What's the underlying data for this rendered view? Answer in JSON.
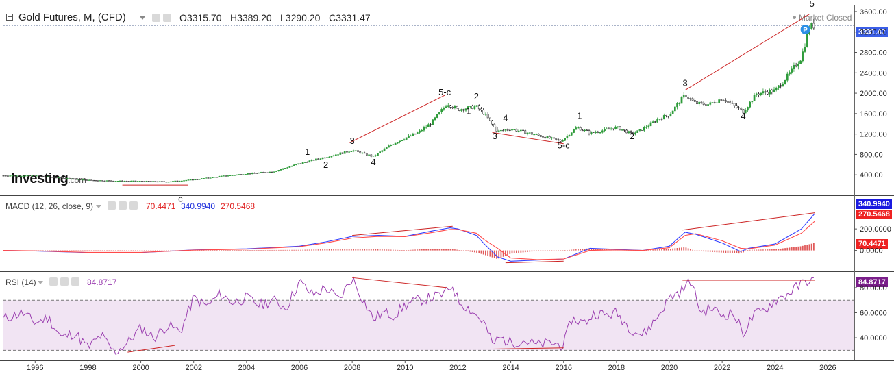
{
  "header": {
    "title": "Gold Futures, M, (CFD)",
    "ohlc": {
      "open": "O3315.70",
      "high": "H3389.20",
      "low": "L3290.20",
      "close": "C3331.47"
    },
    "market_status": "Market Closed",
    "last_price": "3331.47",
    "logo_text": "Investing",
    "logo_suffix": ".com"
  },
  "macd": {
    "label": "MACD (12, 26, close, 9)",
    "hist_value": "70.4471",
    "macd_value": "340.9940",
    "signal_value": "270.5468"
  },
  "rsi": {
    "label": "RSI (14)",
    "value": "84.8717"
  },
  "colors": {
    "up": "#2e9b3a",
    "down": "#111111",
    "trend": "#cc2222",
    "macd_line": "#3340ff",
    "signal_line": "#ff4a4a",
    "histogram": "#e05a5a",
    "rsi_line": "#9b3fb0",
    "rsi_band": "#f1e4f3",
    "price_box": "#3a5ee8"
  },
  "chart_data": [
    {
      "type": "line",
      "name": "price",
      "x_ticks": [
        "1996",
        "1998",
        "2000",
        "2002",
        "2004",
        "2006",
        "2008",
        "2010",
        "2012",
        "2014",
        "2016",
        "2018",
        "2020",
        "2022",
        "2024",
        "2026"
      ],
      "y_ticks": [
        "400.00",
        "800.00",
        "1200.00",
        "1600.00",
        "2000.00",
        "2400.00",
        "2800.00",
        "3200.00",
        "3600.00"
      ],
      "ylim": [
        0,
        3720
      ],
      "xlim": [
        1994.8,
        2027
      ],
      "points": [
        [
          1994.8,
          385
        ],
        [
          1996,
          380
        ],
        [
          1997,
          340
        ],
        [
          1998,
          295
        ],
        [
          1999,
          280
        ],
        [
          2000,
          275
        ],
        [
          2001,
          265
        ],
        [
          2002,
          305
        ],
        [
          2003,
          370
        ],
        [
          2004,
          420
        ],
        [
          2005,
          460
        ],
        [
          2006,
          620
        ],
        [
          2007,
          750
        ],
        [
          2008,
          880
        ],
        [
          2008.8,
          760
        ],
        [
          2009.5,
          1000
        ],
        [
          2010,
          1120
        ],
        [
          2010.5,
          1230
        ],
        [
          2011,
          1420
        ],
        [
          2011.6,
          1800
        ],
        [
          2012,
          1680
        ],
        [
          2012.7,
          1740
        ],
        [
          2013,
          1600
        ],
        [
          2013.5,
          1250
        ],
        [
          2014,
          1300
        ],
        [
          2014.5,
          1240
        ],
        [
          2015,
          1180
        ],
        [
          2015.9,
          1060
        ],
        [
          2016.5,
          1330
        ],
        [
          2017,
          1220
        ],
        [
          2017.5,
          1270
        ],
        [
          2018,
          1330
        ],
        [
          2018.6,
          1200
        ],
        [
          2019,
          1300
        ],
        [
          2019.6,
          1500
        ],
        [
          2020,
          1580
        ],
        [
          2020.6,
          1970
        ],
        [
          2021,
          1800
        ],
        [
          2021.5,
          1780
        ],
        [
          2022,
          1900
        ],
        [
          2022.8,
          1640
        ],
        [
          2023.3,
          1990
        ],
        [
          2024,
          2050
        ],
        [
          2024.5,
          2350
        ],
        [
          2025,
          2700
        ],
        [
          2025.3,
          3300
        ],
        [
          2025.5,
          3331
        ]
      ],
      "labels": [
        {
          "text": "1",
          "x": 2006.3,
          "y": 790
        },
        {
          "text": "2",
          "x": 2007.0,
          "y": 540
        },
        {
          "text": "3",
          "x": 2008.0,
          "y": 1010
        },
        {
          "text": "4",
          "x": 2008.8,
          "y": 590
        },
        {
          "text": "5-c",
          "x": 2011.5,
          "y": 1960
        },
        {
          "text": "2",
          "x": 2012.7,
          "y": 1880
        },
        {
          "text": "1",
          "x": 2012.4,
          "y": 1590
        },
        {
          "text": "4",
          "x": 2013.8,
          "y": 1460
        },
        {
          "text": "3",
          "x": 2013.4,
          "y": 1100
        },
        {
          "text": "5-c",
          "x": 2016.0,
          "y": 920
        },
        {
          "text": "1",
          "x": 2016.6,
          "y": 1500
        },
        {
          "text": "2",
          "x": 2018.6,
          "y": 1100
        },
        {
          "text": "3",
          "x": 2020.6,
          "y": 2140
        },
        {
          "text": "4",
          "x": 2022.8,
          "y": 1490
        },
        {
          "text": "5",
          "x": 2025.4,
          "y": 3690
        },
        {
          "text": "c",
          "x": 2001.5,
          "y": -130
        }
      ]
    },
    {
      "type": "line",
      "name": "macd",
      "y_ticks": [
        "0.0000",
        "200.0000"
      ],
      "ylim": [
        -130,
        500
      ],
      "x": [
        1994.8,
        1996,
        1998,
        2000,
        2002,
        2004,
        2006,
        2007,
        2008,
        2009,
        2010,
        2011,
        2011.7,
        2012,
        2012.7,
        2013,
        2013.5,
        2014,
        2015,
        2016,
        2017,
        2018,
        2019,
        2020,
        2020.6,
        2021,
        2022,
        2022.7,
        2023,
        2024,
        2025,
        2025.5
      ],
      "macd": [
        0,
        -5,
        -20,
        -20,
        5,
        15,
        40,
        80,
        130,
        140,
        130,
        180,
        210,
        200,
        140,
        60,
        -60,
        -100,
        -90,
        -80,
        20,
        10,
        0,
        40,
        170,
        150,
        70,
        -10,
        20,
        60,
        200,
        341
      ],
      "signal": [
        0,
        -4,
        -18,
        -18,
        3,
        12,
        35,
        70,
        115,
        130,
        128,
        165,
        195,
        195,
        160,
        100,
        20,
        -70,
        -85,
        -80,
        0,
        5,
        0,
        25,
        140,
        155,
        90,
        20,
        15,
        50,
        160,
        270
      ],
      "histogram": [
        0,
        -1,
        -2,
        -2,
        2,
        3,
        5,
        10,
        15,
        10,
        2,
        15,
        15,
        5,
        -20,
        -40,
        -80,
        -30,
        -5,
        0,
        20,
        5,
        0,
        15,
        30,
        -5,
        -20,
        -30,
        5,
        10,
        40,
        70
      ]
    },
    {
      "type": "line",
      "name": "rsi",
      "y_ticks": [
        "40.0000",
        "60.0000",
        "80.0000"
      ],
      "ylim": [
        22,
        92
      ],
      "bands": [
        70,
        30
      ],
      "x": [
        1994.8,
        1995.5,
        1996,
        1996.5,
        1997,
        1997.5,
        1998,
        1998.5,
        1999,
        1999.5,
        2000,
        2000.5,
        2001,
        2001.5,
        2002,
        2002.5,
        2003,
        2003.5,
        2004,
        2004.5,
        2005,
        2005.5,
        2006,
        2006.5,
        2007,
        2007.5,
        2008,
        2008.3,
        2008.8,
        2009.2,
        2009.6,
        2010,
        2010.5,
        2011,
        2011.5,
        2011.8,
        2012,
        2012.5,
        2013,
        2013.3,
        2013.6,
        2014,
        2014.5,
        2015,
        2015.5,
        2016,
        2016.3,
        2016.8,
        2017.2,
        2017.6,
        2018,
        2018.5,
        2019,
        2019.5,
        2020,
        2020.5,
        2020.8,
        2021.2,
        2021.6,
        2022,
        2022.4,
        2022.8,
        2023.2,
        2023.6,
        2024,
        2024.4,
        2024.8,
        2025.2,
        2025.5
      ],
      "values": [
        55,
        60,
        52,
        56,
        40,
        44,
        32,
        42,
        28,
        36,
        48,
        40,
        50,
        45,
        72,
        65,
        75,
        68,
        72,
        66,
        70,
        64,
        85,
        74,
        80,
        70,
        88,
        75,
        55,
        60,
        58,
        66,
        70,
        72,
        75,
        82,
        70,
        62,
        52,
        35,
        40,
        36,
        38,
        34,
        36,
        34,
        55,
        52,
        60,
        58,
        60,
        48,
        42,
        55,
        72,
        78,
        86,
        60,
        64,
        58,
        60,
        44,
        58,
        62,
        70,
        74,
        80,
        86,
        85
      ]
    }
  ]
}
